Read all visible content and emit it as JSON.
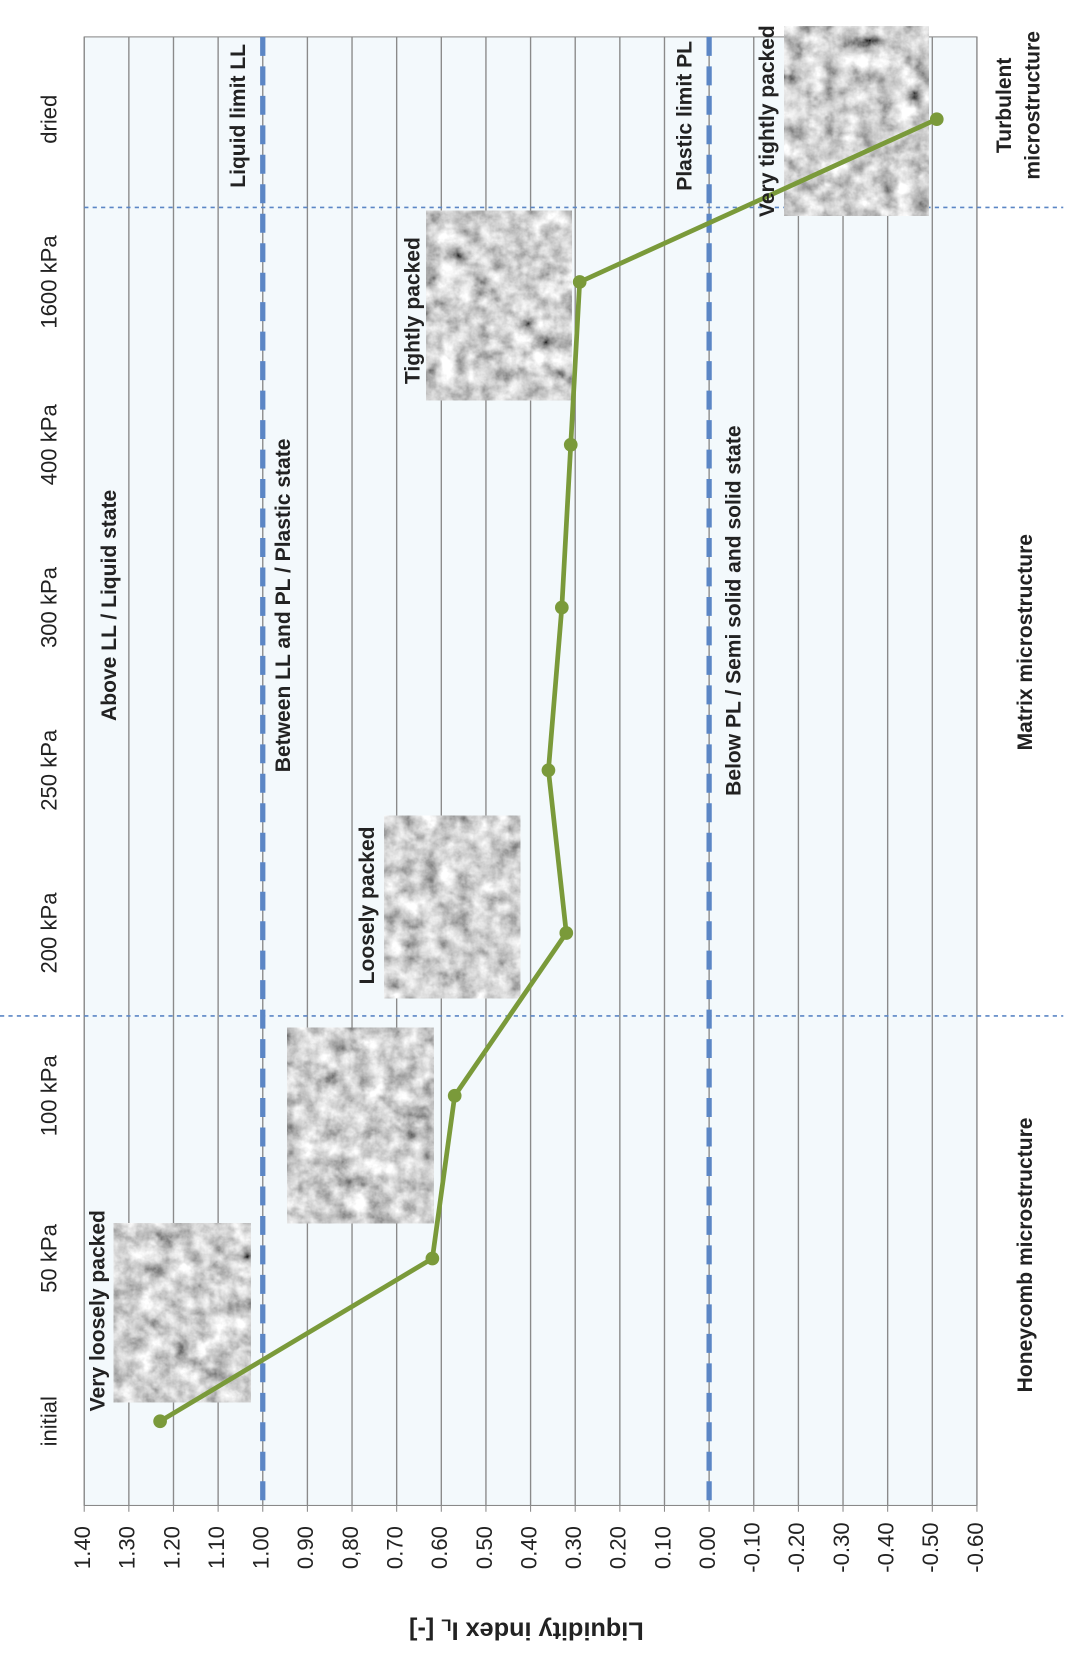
{
  "chart_data": {
    "type": "line",
    "orientation": "rotated",
    "categories": [
      "initial",
      "50 kPa",
      "100 kPa",
      "200 kPa",
      "250 kPa",
      "300 kPa",
      "400 kPa",
      "1600 kPa",
      "dried"
    ],
    "series": [
      {
        "name": "Liquidity index",
        "color": "#7a9a3a",
        "values": [
          1.23,
          0.62,
          0.57,
          0.32,
          0.36,
          0.33,
          0.31,
          0.29,
          -0.51
        ]
      }
    ],
    "x_label": [
      "Liquidity index I",
      "L",
      " [-]"
    ],
    "xlim": [
      1.4,
      -0.6
    ],
    "xticks": [
      {
        "value": 1.4,
        "label": "1.40"
      },
      {
        "value": 1.3,
        "label": "1.30"
      },
      {
        "value": 1.2,
        "label": "1.20"
      },
      {
        "value": 1.1,
        "label": "1.10"
      },
      {
        "value": 1,
        "label": "1.00"
      },
      {
        "value": 0.9,
        "label": "0.90"
      },
      {
        "value": 0.8,
        "label": "0,80"
      },
      {
        "value": 0.7,
        "label": "0.70"
      },
      {
        "value": 0.6,
        "label": "0.60"
      },
      {
        "value": 0.5,
        "label": "0.50"
      },
      {
        "value": 0.4,
        "label": "0.40"
      },
      {
        "value": 0.3,
        "label": "0.30"
      },
      {
        "value": 0.2,
        "label": "0.20"
      },
      {
        "value": 0.1,
        "label": "0.10"
      },
      {
        "value": 0,
        "label": "0.00"
      },
      {
        "value": -0.1,
        "label": "-0.10"
      },
      {
        "value": -0.2,
        "label": "-0.20"
      },
      {
        "value": -0.3,
        "label": "-0.30"
      },
      {
        "value": -0.4,
        "label": "-0.40"
      },
      {
        "value": -0.5,
        "label": "-0.50"
      },
      {
        "value": -0.6,
        "label": "-0.60"
      }
    ],
    "grid": true,
    "reference_lines": [
      {
        "label": "Liquid limit LL",
        "value": 1,
        "color": "#5b86c5"
      },
      {
        "label": "Plastic limit PL",
        "value": 0,
        "color": "#5b86c5"
      }
    ],
    "state_labels": [
      "Above LL / Liquid state",
      "Between LL and PL / Plastic state",
      "Below PL / Semi solid and solid state"
    ],
    "microstructure_labels": [
      "Honeycomb microstructure",
      "Matrix microstructure",
      [
        "Turbulent",
        "microstructure"
      ]
    ],
    "image_labels": [
      "Very loosely packed",
      "Loosely packed",
      "Tightly packed",
      "Very tightly packed"
    ]
  }
}
